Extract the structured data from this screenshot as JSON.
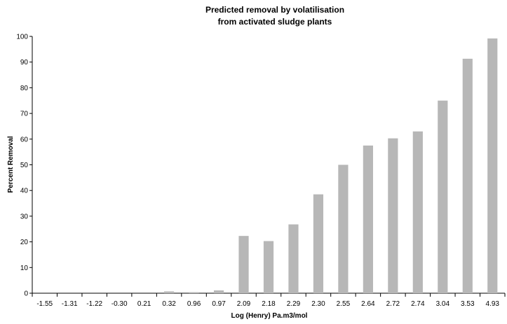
{
  "chart_data": {
    "type": "bar",
    "title_line1": "Predicted removal by volatilisation",
    "title_line2": "from activated sludge plants",
    "xlabel": "Log (Henry) Pa.m3/mol",
    "ylabel": "Percent Removal",
    "categories": [
      "-1.55",
      "-1.31",
      "-1.22",
      "-0.30",
      "0.21",
      "0.32",
      "0.96",
      "0.97",
      "2.09",
      "2.18",
      "2.29",
      "2.30",
      "2.55",
      "2.64",
      "2.72",
      "2.74",
      "3.04",
      "3.53",
      "4.93"
    ],
    "values": [
      0,
      0,
      0,
      0,
      0,
      0.7,
      0.4,
      1.1,
      22.3,
      20.3,
      26.8,
      38.5,
      50.0,
      57.5,
      60.3,
      63.0,
      75.0,
      91.3,
      99.2
    ],
    "ylim": [
      0,
      100
    ],
    "yticks": [
      "0",
      "10",
      "20",
      "30",
      "40",
      "50",
      "60",
      "70",
      "80",
      "90",
      "100"
    ],
    "bar_color": "#b7b7b7",
    "grid": false
  }
}
